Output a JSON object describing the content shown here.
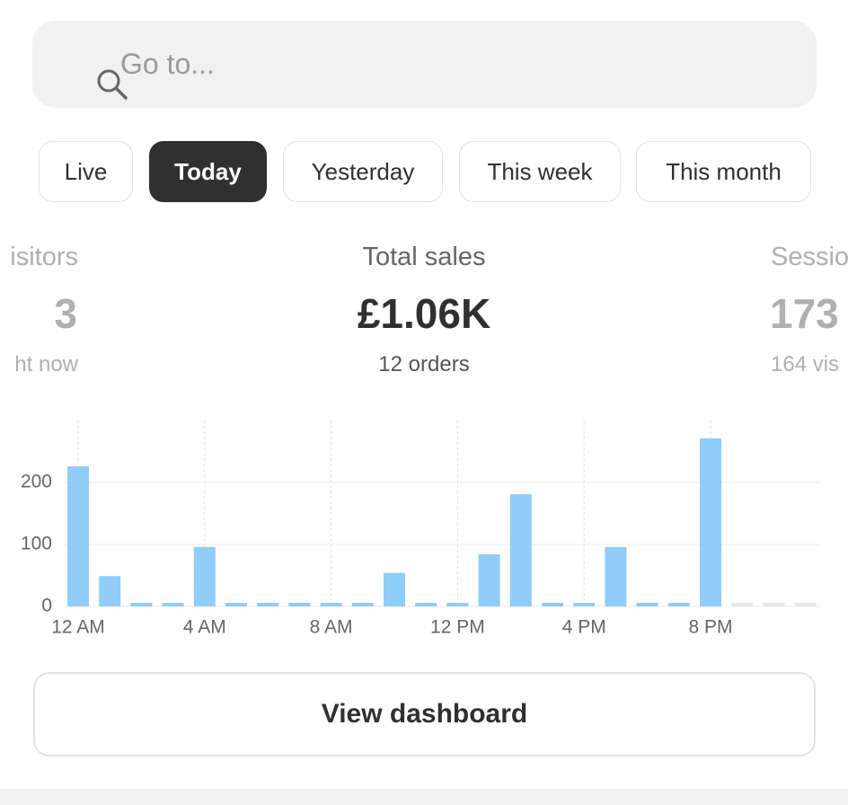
{
  "search": {
    "placeholder": "Go to..."
  },
  "tabs": [
    "Live",
    "Today",
    "Yesterday",
    "This week",
    "This month"
  ],
  "metrics": [
    {
      "label": "isitors",
      "value": "3",
      "sub": "ht now"
    },
    {
      "label": "Total sales",
      "value": "£1.06K",
      "sub": "12 orders"
    },
    {
      "label": "Sessio",
      "value": "173",
      "sub": "164 vis"
    }
  ],
  "chart_data": {
    "type": "bar",
    "categories": [
      "12 AM",
      null,
      null,
      null,
      "4 AM",
      null,
      null,
      null,
      "8 AM",
      null,
      null,
      null,
      "12 PM",
      null,
      null,
      null,
      "4 PM",
      null,
      null,
      null,
      "8 PM",
      null,
      null,
      null
    ],
    "values": [
      226,
      49,
      0,
      0,
      96,
      0,
      0,
      0,
      0,
      0,
      54,
      0,
      0,
      84,
      181,
      0,
      0,
      96,
      0,
      0,
      271,
      null,
      null,
      null
    ],
    "color": "#90cdf9",
    "ylim": [
      0,
      300
    ],
    "yticks": [
      0,
      100,
      200
    ],
    "grid": true
  },
  "button": {
    "label": "View dashboard"
  }
}
